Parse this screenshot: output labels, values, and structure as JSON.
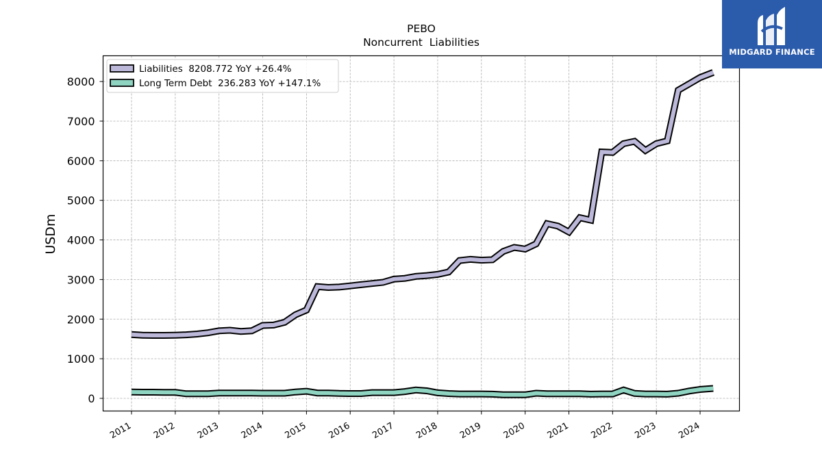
{
  "chart_data": {
    "type": "line",
    "title": "PEBO",
    "subtitle": "Noncurrent  Liabilities",
    "xlabel": "",
    "ylabel": "USDm",
    "xlim": [
      2010.35,
      2024.9
    ],
    "ylim": [
      -320,
      8650
    ],
    "x_ticks": [
      2011,
      2012,
      2013,
      2014,
      2015,
      2016,
      2017,
      2018,
      2019,
      2020,
      2021,
      2022,
      2023,
      2024
    ],
    "x_tick_labels": [
      "2011",
      "2012",
      "2013",
      "2014",
      "2015",
      "2016",
      "2017",
      "2018",
      "2019",
      "2020",
      "2021",
      "2022",
      "2023",
      "2024"
    ],
    "y_ticks": [
      0,
      1000,
      2000,
      3000,
      4000,
      5000,
      6000,
      7000,
      8000
    ],
    "y_tick_labels": [
      "0",
      "1000",
      "2000",
      "3000",
      "4000",
      "5000",
      "6000",
      "7000",
      "8000"
    ],
    "grid": true,
    "legend_position": "top-left",
    "series": [
      {
        "name": "Liabilities  8208.772 YoY +26.4%",
        "color": "#bcb8d9",
        "x": [
          2011.0,
          2011.25,
          2011.5,
          2011.75,
          2012.0,
          2012.25,
          2012.5,
          2012.75,
          2013.0,
          2013.25,
          2013.5,
          2013.75,
          2014.0,
          2014.25,
          2014.5,
          2014.75,
          2015.0,
          2015.25,
          2015.5,
          2015.75,
          2016.0,
          2016.25,
          2016.5,
          2016.75,
          2017.0,
          2017.25,
          2017.5,
          2017.75,
          2018.0,
          2018.25,
          2018.5,
          2018.75,
          2019.0,
          2019.25,
          2019.5,
          2019.75,
          2020.0,
          2020.25,
          2020.5,
          2020.75,
          2021.0,
          2021.25,
          2021.5,
          2021.75,
          2022.0,
          2022.25,
          2022.5,
          2022.75,
          2023.0,
          2023.25,
          2023.5,
          2023.75,
          2024.0,
          2024.3
        ],
        "values": [
          1610,
          1595,
          1590,
          1590,
          1595,
          1605,
          1625,
          1655,
          1705,
          1720,
          1690,
          1705,
          1840,
          1850,
          1920,
          2110,
          2230,
          2820,
          2800,
          2810,
          2840,
          2870,
          2900,
          2930,
          3010,
          3030,
          3080,
          3100,
          3130,
          3190,
          3480,
          3510,
          3490,
          3500,
          3710,
          3810,
          3770,
          3900,
          4410,
          4350,
          4200,
          4560,
          4500,
          6220,
          6210,
          6430,
          6490,
          6260,
          6430,
          6500,
          7780,
          7940,
          8100,
          8230
        ]
      },
      {
        "name": "Long Term Debt  236.283 YoY +147.1%",
        "color": "#8fd3c1",
        "x": [
          2011.0,
          2011.25,
          2011.5,
          2011.75,
          2012.0,
          2012.25,
          2012.5,
          2012.75,
          2013.0,
          2013.25,
          2013.5,
          2013.75,
          2014.0,
          2014.25,
          2014.5,
          2014.75,
          2015.0,
          2015.25,
          2015.5,
          2015.75,
          2016.0,
          2016.25,
          2016.5,
          2016.75,
          2017.0,
          2017.25,
          2017.5,
          2017.75,
          2018.0,
          2018.25,
          2018.5,
          2018.75,
          2019.0,
          2019.25,
          2019.5,
          2019.75,
          2020.0,
          2020.25,
          2020.5,
          2020.75,
          2021.0,
          2021.25,
          2021.5,
          2021.75,
          2022.0,
          2022.25,
          2022.5,
          2022.75,
          2023.0,
          2023.25,
          2023.5,
          2023.75,
          2024.0,
          2024.3
        ],
        "values": [
          160,
          155,
          155,
          150,
          150,
          115,
          115,
          115,
          135,
          135,
          135,
          135,
          130,
          130,
          130,
          160,
          180,
          135,
          135,
          125,
          120,
          120,
          145,
          145,
          145,
          170,
          210,
          190,
          140,
          120,
          110,
          110,
          110,
          105,
          90,
          90,
          90,
          130,
          115,
          115,
          115,
          115,
          105,
          110,
          110,
          210,
          125,
          110,
          110,
          105,
          130,
          185,
          225,
          250
        ]
      }
    ]
  },
  "logo": {
    "text": "MIDGARD FINANCE"
  }
}
